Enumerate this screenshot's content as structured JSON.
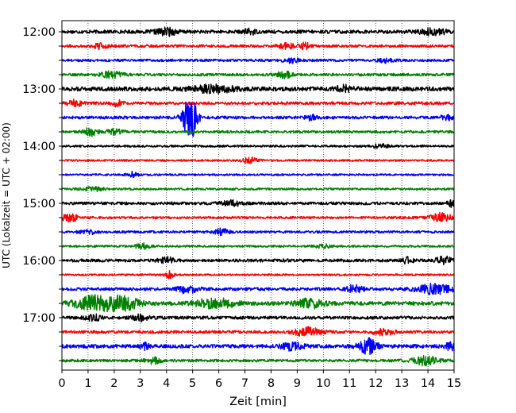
{
  "chart_data": {
    "type": "line",
    "title": "",
    "xlabel": "Zeit  [min]",
    "ylabel": "UTC (Lokalzeit = UTC + 02:00)",
    "xlim": [
      0,
      15
    ],
    "x_ticks": [
      "0",
      "1",
      "2",
      "3",
      "4",
      "5",
      "6",
      "7",
      "8",
      "9",
      "10",
      "11",
      "12",
      "13",
      "14",
      "15"
    ],
    "y_tick_labels": [
      "12:00",
      "13:00",
      "14:00",
      "15:00",
      "16:00",
      "17:00"
    ],
    "grid": "vertical dotted",
    "legend": "none",
    "colors": [
      "#000000",
      "#ff0000",
      "#0000ff",
      "#008000"
    ],
    "trace_interval_minutes": 15,
    "traces": [
      {
        "start": "12:00",
        "color": "#000000",
        "noise": 0.18,
        "events": [
          {
            "t": 4.0,
            "amp": 0.35,
            "w": 0.4
          },
          {
            "t": 7.2,
            "amp": 0.3,
            "w": 0.2
          },
          {
            "t": 14.2,
            "amp": 0.3,
            "w": 0.5
          }
        ]
      },
      {
        "start": "12:15",
        "color": "#ff0000",
        "noise": 0.14,
        "events": [
          {
            "t": 1.4,
            "amp": 0.3,
            "w": 0.3
          },
          {
            "t": 8.6,
            "amp": 0.25,
            "w": 0.3
          },
          {
            "t": 9.3,
            "amp": 0.3,
            "w": 0.2
          }
        ]
      },
      {
        "start": "12:30",
        "color": "#0000ff",
        "noise": 0.13,
        "events": [
          {
            "t": 8.8,
            "amp": 0.25,
            "w": 0.3
          },
          {
            "t": 12.4,
            "amp": 0.2,
            "w": 0.3
          }
        ]
      },
      {
        "start": "12:45",
        "color": "#008000",
        "noise": 0.14,
        "events": [
          {
            "t": 1.9,
            "amp": 0.3,
            "w": 0.4
          },
          {
            "t": 8.5,
            "amp": 0.3,
            "w": 0.3
          }
        ]
      },
      {
        "start": "13:00",
        "color": "#000000",
        "noise": 0.22,
        "events": [
          {
            "t": 5.8,
            "amp": 0.35,
            "w": 0.8
          },
          {
            "t": 10.8,
            "amp": 0.3,
            "w": 0.3
          }
        ]
      },
      {
        "start": "13:15",
        "color": "#ff0000",
        "noise": 0.15,
        "events": [
          {
            "t": 0.5,
            "amp": 0.3,
            "w": 0.3
          },
          {
            "t": 2.1,
            "amp": 0.3,
            "w": 0.2
          }
        ]
      },
      {
        "start": "13:30",
        "color": "#0000ff",
        "noise": 0.15,
        "events": [
          {
            "t": 4.9,
            "amp": 2.2,
            "w": 0.28
          },
          {
            "t": 9.5,
            "amp": 0.3,
            "w": 0.2
          },
          {
            "t": 14.7,
            "amp": 0.3,
            "w": 0.2
          }
        ]
      },
      {
        "start": "13:45",
        "color": "#008000",
        "noise": 0.13,
        "events": [
          {
            "t": 1.1,
            "amp": 0.45,
            "w": 0.25
          },
          {
            "t": 2.0,
            "amp": 0.3,
            "w": 0.3
          }
        ]
      },
      {
        "start": "14:00",
        "color": "#000000",
        "noise": 0.11,
        "events": [
          {
            "t": 12.2,
            "amp": 0.2,
            "w": 0.3
          }
        ]
      },
      {
        "start": "14:15",
        "color": "#ff0000",
        "noise": 0.1,
        "events": [
          {
            "t": 7.2,
            "amp": 0.3,
            "w": 0.3
          }
        ]
      },
      {
        "start": "14:30",
        "color": "#0000ff",
        "noise": 0.1,
        "events": [
          {
            "t": 2.7,
            "amp": 0.3,
            "w": 0.2
          }
        ]
      },
      {
        "start": "14:45",
        "color": "#008000",
        "noise": 0.11,
        "events": [
          {
            "t": 1.2,
            "amp": 0.2,
            "w": 0.4
          }
        ]
      },
      {
        "start": "15:00",
        "color": "#000000",
        "noise": 0.15,
        "events": [
          {
            "t": 6.5,
            "amp": 0.25,
            "w": 0.4
          },
          {
            "t": 14.9,
            "amp": 0.3,
            "w": 0.2
          }
        ]
      },
      {
        "start": "15:15",
        "color": "#ff0000",
        "noise": 0.12,
        "events": [
          {
            "t": 0.3,
            "amp": 0.45,
            "w": 0.3
          },
          {
            "t": 14.5,
            "amp": 0.45,
            "w": 0.4
          }
        ]
      },
      {
        "start": "15:30",
        "color": "#0000ff",
        "noise": 0.12,
        "events": [
          {
            "t": 1.0,
            "amp": 0.25,
            "w": 0.3
          },
          {
            "t": 6.1,
            "amp": 0.3,
            "w": 0.3
          }
        ]
      },
      {
        "start": "15:45",
        "color": "#008000",
        "noise": 0.11,
        "events": [
          {
            "t": 3.1,
            "amp": 0.25,
            "w": 0.3
          },
          {
            "t": 10.0,
            "amp": 0.2,
            "w": 0.3
          }
        ]
      },
      {
        "start": "16:00",
        "color": "#000000",
        "noise": 0.16,
        "events": [
          {
            "t": 4.0,
            "amp": 0.3,
            "w": 0.3
          },
          {
            "t": 13.2,
            "amp": 0.3,
            "w": 0.2
          },
          {
            "t": 14.6,
            "amp": 0.4,
            "w": 0.3
          }
        ]
      },
      {
        "start": "16:15",
        "color": "#ff0000",
        "noise": 0.1,
        "events": [
          {
            "t": 4.1,
            "amp": 0.45,
            "w": 0.15
          }
        ]
      },
      {
        "start": "16:30",
        "color": "#0000ff",
        "noise": 0.16,
        "events": [
          {
            "t": 4.8,
            "amp": 0.4,
            "w": 0.4
          },
          {
            "t": 11.2,
            "amp": 0.4,
            "w": 0.3
          },
          {
            "t": 14.3,
            "amp": 0.5,
            "w": 0.7
          }
        ]
      },
      {
        "start": "16:45",
        "color": "#008000",
        "noise": 0.2,
        "events": [
          {
            "t": 1.3,
            "amp": 0.75,
            "w": 0.8
          },
          {
            "t": 2.4,
            "amp": 0.55,
            "w": 0.6
          },
          {
            "t": 5.9,
            "amp": 0.45,
            "w": 0.8
          },
          {
            "t": 9.5,
            "amp": 0.45,
            "w": 0.5
          }
        ]
      },
      {
        "start": "17:00",
        "color": "#000000",
        "noise": 0.16,
        "events": [
          {
            "t": 1.2,
            "amp": 0.3,
            "w": 0.3
          },
          {
            "t": 3.0,
            "amp": 0.3,
            "w": 0.3
          }
        ]
      },
      {
        "start": "17:15",
        "color": "#ff0000",
        "noise": 0.15,
        "events": [
          {
            "t": 9.4,
            "amp": 0.45,
            "w": 0.5
          },
          {
            "t": 12.3,
            "amp": 0.3,
            "w": 0.4
          }
        ]
      },
      {
        "start": "17:30",
        "color": "#0000ff",
        "noise": 0.19,
        "events": [
          {
            "t": 3.2,
            "amp": 0.3,
            "w": 0.2
          },
          {
            "t": 8.8,
            "amp": 0.35,
            "w": 0.4
          },
          {
            "t": 11.7,
            "amp": 0.75,
            "w": 0.35
          },
          {
            "t": 14.9,
            "amp": 0.45,
            "w": 0.2
          }
        ]
      },
      {
        "start": "17:45",
        "color": "#008000",
        "noise": 0.14,
        "events": [
          {
            "t": 3.5,
            "amp": 0.3,
            "w": 0.3
          },
          {
            "t": 13.9,
            "amp": 0.45,
            "w": 0.5
          }
        ]
      }
    ]
  }
}
